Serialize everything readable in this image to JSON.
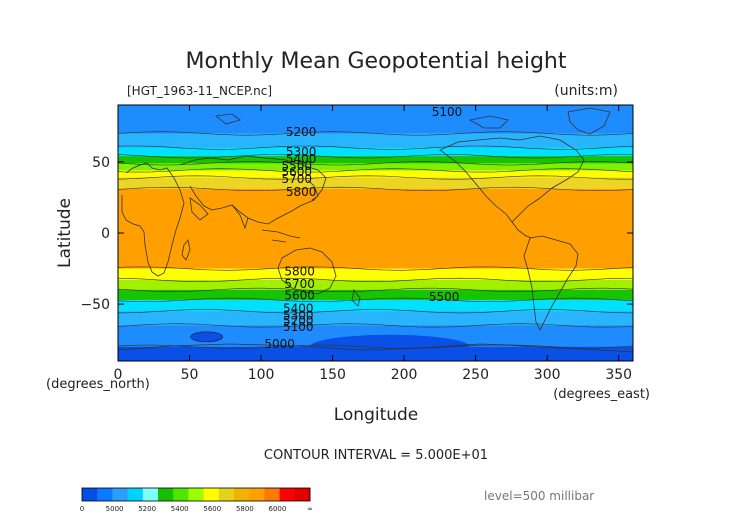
{
  "chart_data": {
    "type": "contour-map",
    "title": "Monthly Mean Geopotential height",
    "file_label": "[HGT_1963-11_NCEP.nc]",
    "units_label": "(units:m)",
    "xlabel": "Longitude",
    "ylabel": "Latitude",
    "x_unit_label": "(degrees_east)",
    "y_unit_label": "(degrees_north)",
    "xlim": [
      0,
      360
    ],
    "ylim": [
      -90,
      90
    ],
    "x_ticks": [
      0,
      50,
      100,
      150,
      200,
      250,
      300,
      350
    ],
    "y_ticks": [
      50,
      0,
      -50
    ],
    "y_tick_labels": [
      "50",
      "0",
      "−50"
    ],
    "contour_interval_text": "CONTOUR INTERVAL = 5.000E+01",
    "level_text": "level=500 millibar",
    "colorbar": {
      "ticks": [
        "0",
        "5000",
        "5200",
        "5400",
        "5600",
        "5800",
        "6000",
        "∞"
      ],
      "colors": [
        "#0050e6",
        "#0a78ff",
        "#29a0ff",
        "#00d2ff",
        "#80ffff",
        "#16c000",
        "#4ce600",
        "#9bff00",
        "#ffff00",
        "#e6d21e",
        "#f0b400",
        "#ffa000",
        "#ff7800",
        "#ff0000",
        "#e00000"
      ]
    },
    "bands": [
      {
        "lat_from": 90,
        "lat_to": 70,
        "height_m": "<5100",
        "color": "#1e8cff"
      },
      {
        "lat_from": 70,
        "lat_to": 60,
        "height_m": "5100-5300",
        "color": "#29b4ff"
      },
      {
        "lat_from": 60,
        "lat_to": 54,
        "height_m": "5300-5400",
        "color": "#00e1ff"
      },
      {
        "lat_from": 54,
        "lat_to": 49,
        "height_m": "5400-5500",
        "color": "#16c400"
      },
      {
        "lat_from": 49,
        "lat_to": 44,
        "height_m": "5500-5600",
        "color": "#7ef000"
      },
      {
        "lat_from": 44,
        "lat_to": 39,
        "height_m": "5600-5700",
        "color": "#ffff00"
      },
      {
        "lat_from": 39,
        "lat_to": 31,
        "height_m": "5700-5800",
        "color": "#ecd623"
      },
      {
        "lat_from": 31,
        "lat_to": -25,
        "height_m": ">5800",
        "color": "#ffa000"
      },
      {
        "lat_from": -25,
        "lat_to": -33,
        "height_m": "5700-5800",
        "color": "#ffff00"
      },
      {
        "lat_from": -33,
        "lat_to": -40,
        "height_m": "5600-5700",
        "color": "#a0f000"
      },
      {
        "lat_from": -40,
        "lat_to": -47,
        "height_m": "5500-5600",
        "color": "#16c400"
      },
      {
        "lat_from": -47,
        "lat_to": -55,
        "height_m": "5400-5500",
        "color": "#00e1ff"
      },
      {
        "lat_from": -55,
        "lat_to": -65,
        "height_m": "5200-5400",
        "color": "#29b4ff"
      },
      {
        "lat_from": -65,
        "lat_to": -80,
        "height_m": "5100-5200",
        "color": "#1e8cff"
      },
      {
        "lat_from": -80,
        "lat_to": -90,
        "height_m": "<5000",
        "color": "#0a50e6"
      }
    ],
    "contour_labels": [
      {
        "text": "5100",
        "lon": 230,
        "lat": 85
      },
      {
        "text": "5200",
        "lon": 128,
        "lat": 71
      },
      {
        "text": "5300",
        "lon": 128,
        "lat": 57
      },
      {
        "text": "5400",
        "lon": 128,
        "lat": 52
      },
      {
        "text": "5500",
        "lon": 125,
        "lat": 47
      },
      {
        "text": "5600",
        "lon": 125,
        "lat": 43
      },
      {
        "text": "5700",
        "lon": 125,
        "lat": 38
      },
      {
        "text": "5800",
        "lon": 128,
        "lat": 29
      },
      {
        "text": "5800",
        "lon": 127,
        "lat": -27
      },
      {
        "text": "5700",
        "lon": 127,
        "lat": -36
      },
      {
        "text": "5600",
        "lon": 127,
        "lat": -44
      },
      {
        "text": "5500",
        "lon": 228,
        "lat": -45
      },
      {
        "text": "5400",
        "lon": 126,
        "lat": -53
      },
      {
        "text": "5300",
        "lon": 126,
        "lat": -58
      },
      {
        "text": "5200",
        "lon": 126,
        "lat": -62
      },
      {
        "text": "5100",
        "lon": 126,
        "lat": -66
      },
      {
        "text": "5000",
        "lon": 113,
        "lat": -78
      }
    ]
  }
}
